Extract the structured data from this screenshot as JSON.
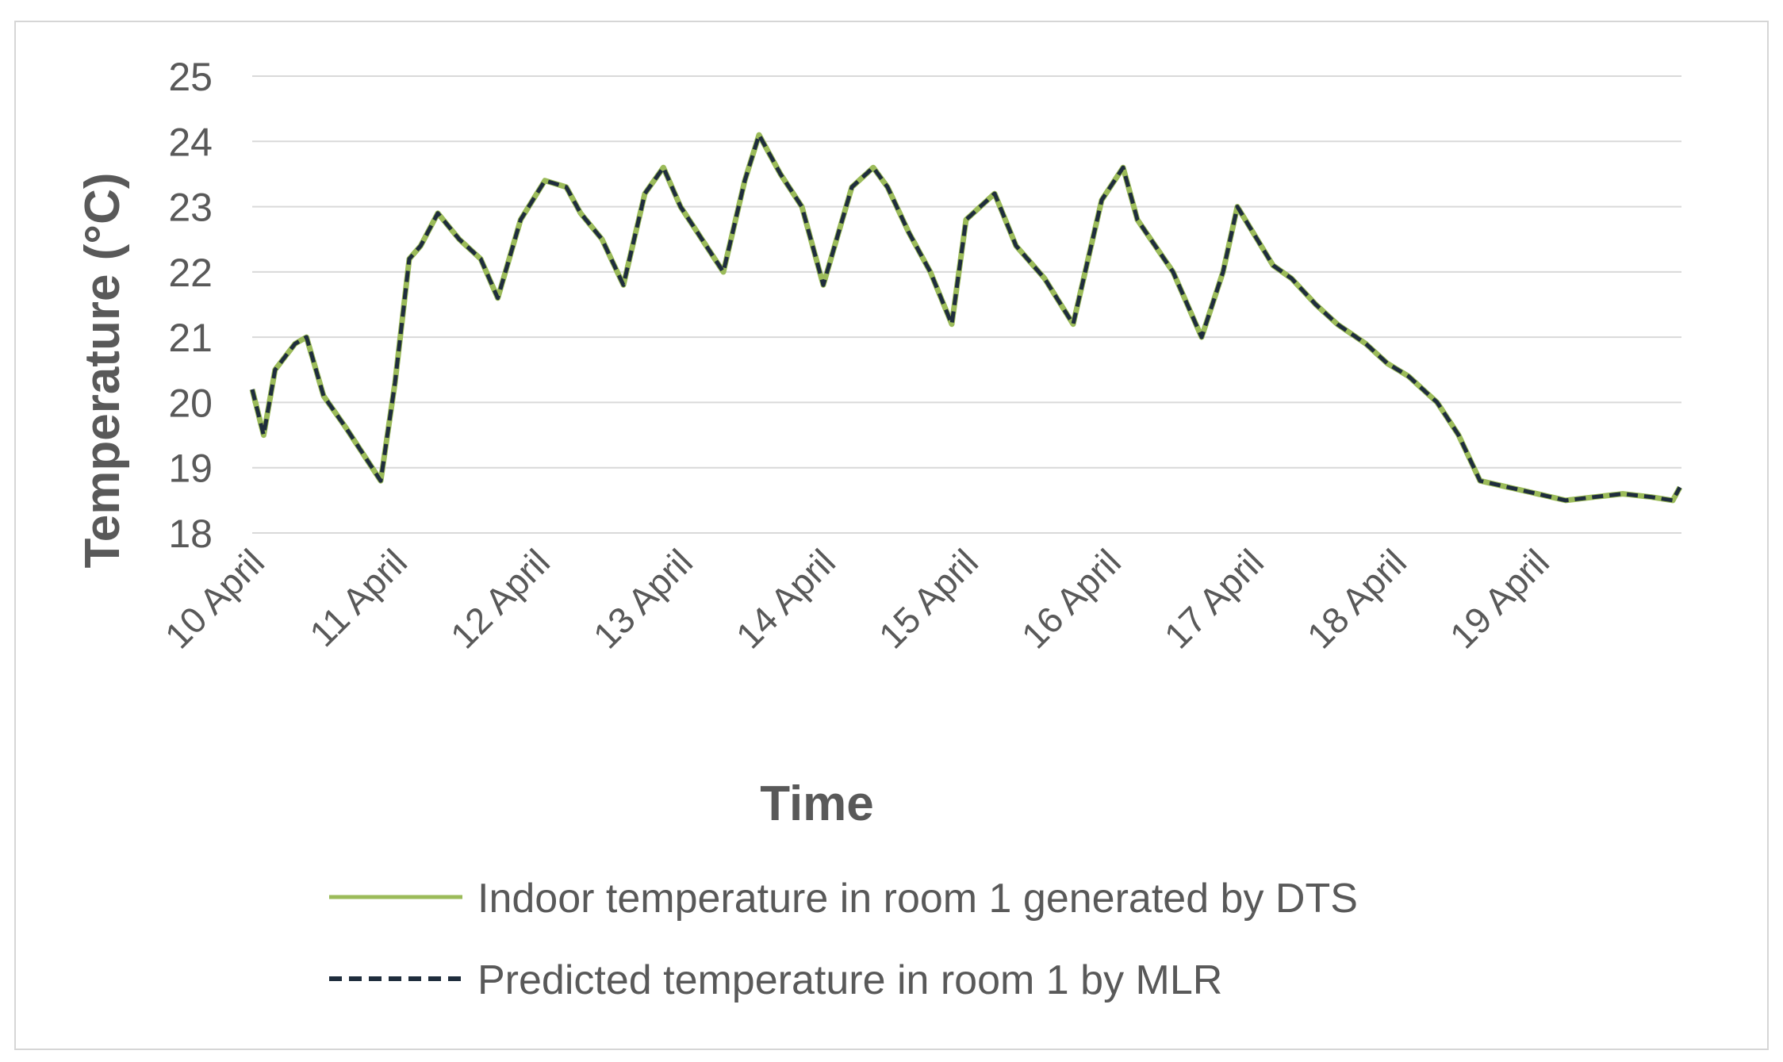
{
  "chart_data": {
    "type": "line",
    "title": "",
    "xlabel": "Time",
    "ylabel": "Temperature (°C)",
    "ylim": [
      18,
      25
    ],
    "yticks": [
      18,
      19,
      20,
      21,
      22,
      23,
      24,
      25
    ],
    "grid": true,
    "legend_position": "bottom",
    "categories": [
      "10 April",
      "11 April",
      "12 April",
      "13 April",
      "14 April",
      "15 April",
      "16 April",
      "17 April",
      "18 April",
      "19 April"
    ],
    "x_unit": "days from 10 April",
    "series": [
      {
        "name": "Indoor temperature in room 1 generated by DTS",
        "color": "#9bbb59",
        "style": "solid",
        "x": [
          0,
          0.08,
          0.16,
          0.3,
          0.38,
          0.5,
          0.66,
          0.9,
          1.0,
          1.1,
          1.18,
          1.3,
          1.45,
          1.6,
          1.72,
          1.88,
          2.05,
          2.2,
          2.3,
          2.45,
          2.6,
          2.75,
          2.88,
          3.0,
          3.15,
          3.3,
          3.45,
          3.55,
          3.7,
          3.85,
          4.0,
          4.2,
          4.35,
          4.45,
          4.6,
          4.75,
          4.9,
          5.0,
          5.2,
          5.35,
          5.55,
          5.75,
          5.95,
          6.1,
          6.2,
          6.45,
          6.65,
          6.8,
          6.9,
          7.15,
          7.28,
          7.45,
          7.6,
          7.8,
          7.95,
          8.1,
          8.3,
          8.45,
          8.6,
          8.8,
          9.0,
          9.2,
          9.4,
          9.6,
          9.8,
          9.95,
          10.0
        ],
        "values": [
          20.2,
          19.5,
          20.5,
          20.9,
          21.0,
          20.1,
          19.6,
          18.8,
          20.3,
          22.2,
          22.4,
          22.9,
          22.5,
          22.2,
          21.6,
          22.8,
          23.4,
          23.3,
          22.9,
          22.5,
          21.8,
          23.2,
          23.6,
          23.0,
          22.5,
          22.0,
          23.4,
          24.1,
          23.5,
          23.0,
          21.8,
          23.3,
          23.6,
          23.3,
          22.6,
          22.0,
          21.2,
          22.8,
          23.2,
          22.4,
          21.9,
          21.2,
          23.1,
          23.6,
          22.8,
          22.0,
          21.0,
          22.0,
          23.0,
          22.1,
          21.9,
          21.5,
          21.2,
          20.9,
          20.6,
          20.4,
          20.0,
          19.5,
          18.8,
          18.7,
          18.6,
          18.5,
          18.55,
          18.6,
          18.55,
          18.5,
          18.7
        ]
      },
      {
        "name": "Predicted temperature in room 1 by MLR",
        "color": "#1f2d3d",
        "style": "dashed",
        "x": [
          0,
          0.08,
          0.16,
          0.3,
          0.38,
          0.5,
          0.66,
          0.9,
          1.0,
          1.1,
          1.18,
          1.3,
          1.45,
          1.6,
          1.72,
          1.88,
          2.05,
          2.2,
          2.3,
          2.45,
          2.6,
          2.75,
          2.88,
          3.0,
          3.15,
          3.3,
          3.45,
          3.55,
          3.7,
          3.85,
          4.0,
          4.2,
          4.35,
          4.45,
          4.6,
          4.75,
          4.9,
          5.0,
          5.2,
          5.35,
          5.55,
          5.75,
          5.95,
          6.1,
          6.2,
          6.45,
          6.65,
          6.8,
          6.9,
          7.15,
          7.28,
          7.45,
          7.6,
          7.8,
          7.95,
          8.1,
          8.3,
          8.45,
          8.6,
          8.8,
          9.0,
          9.2,
          9.4,
          9.6,
          9.8,
          9.95,
          10.0
        ],
        "values": [
          20.2,
          19.5,
          20.5,
          20.9,
          21.0,
          20.1,
          19.6,
          18.8,
          20.3,
          22.2,
          22.4,
          22.9,
          22.5,
          22.2,
          21.6,
          22.8,
          23.4,
          23.3,
          22.9,
          22.5,
          21.8,
          23.2,
          23.6,
          23.0,
          22.5,
          22.0,
          23.4,
          24.1,
          23.5,
          23.0,
          21.8,
          23.3,
          23.6,
          23.3,
          22.6,
          22.0,
          21.2,
          22.8,
          23.2,
          22.4,
          21.9,
          21.2,
          23.1,
          23.6,
          22.8,
          22.0,
          21.0,
          22.0,
          23.0,
          22.1,
          21.9,
          21.5,
          21.2,
          20.9,
          20.6,
          20.4,
          20.0,
          19.5,
          18.8,
          18.7,
          18.6,
          18.5,
          18.55,
          18.6,
          18.55,
          18.5,
          18.7
        ]
      }
    ]
  }
}
